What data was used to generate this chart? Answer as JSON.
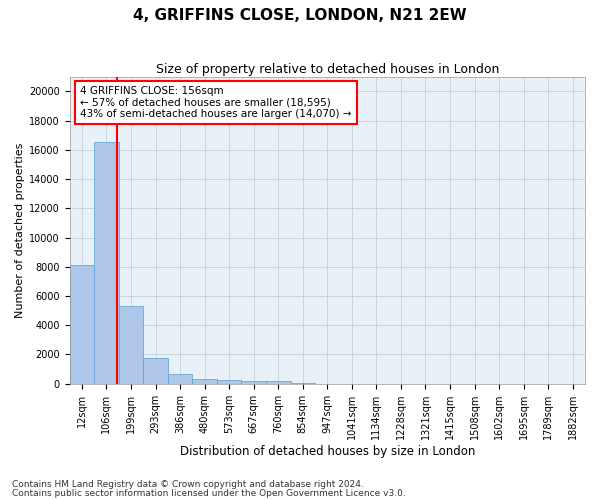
{
  "title1": "4, GRIFFINS CLOSE, LONDON, N21 2EW",
  "title2": "Size of property relative to detached houses in London",
  "xlabel": "Distribution of detached houses by size in London",
  "ylabel": "Number of detached properties",
  "footnote1": "Contains HM Land Registry data © Crown copyright and database right 2024.",
  "footnote2": "Contains public sector information licensed under the Open Government Licence v3.0.",
  "bar_labels": [
    "12sqm",
    "106sqm",
    "199sqm",
    "293sqm",
    "386sqm",
    "480sqm",
    "573sqm",
    "667sqm",
    "760sqm",
    "854sqm",
    "947sqm",
    "1041sqm",
    "1134sqm",
    "1228sqm",
    "1321sqm",
    "1415sqm",
    "1508sqm",
    "1602sqm",
    "1695sqm",
    "1789sqm",
    "1882sqm"
  ],
  "bar_values": [
    8100,
    16500,
    5300,
    1750,
    650,
    350,
    270,
    200,
    180,
    50,
    0,
    0,
    0,
    0,
    0,
    0,
    0,
    0,
    0,
    0,
    0
  ],
  "bar_color": "#aec6e8",
  "bar_edge_color": "#5a9fd4",
  "bg_color": "#e8f0f8",
  "grid_color": "#c8d4e0",
  "vline_x": 1.45,
  "vline_color": "red",
  "annotation_text": "4 GRIFFINS CLOSE: 156sqm\n← 57% of detached houses are smaller (18,595)\n43% of semi-detached houses are larger (14,070) →",
  "annotation_box_color": "white",
  "annotation_box_edge_color": "red",
  "ylim": [
    0,
    21000
  ],
  "yticks": [
    0,
    2000,
    4000,
    6000,
    8000,
    10000,
    12000,
    14000,
    16000,
    18000,
    20000
  ],
  "title1_fontsize": 11,
  "title2_fontsize": 9,
  "xlabel_fontsize": 8.5,
  "ylabel_fontsize": 8,
  "tick_fontsize": 7,
  "annotation_fontsize": 7.5,
  "footnote_fontsize": 6.5
}
